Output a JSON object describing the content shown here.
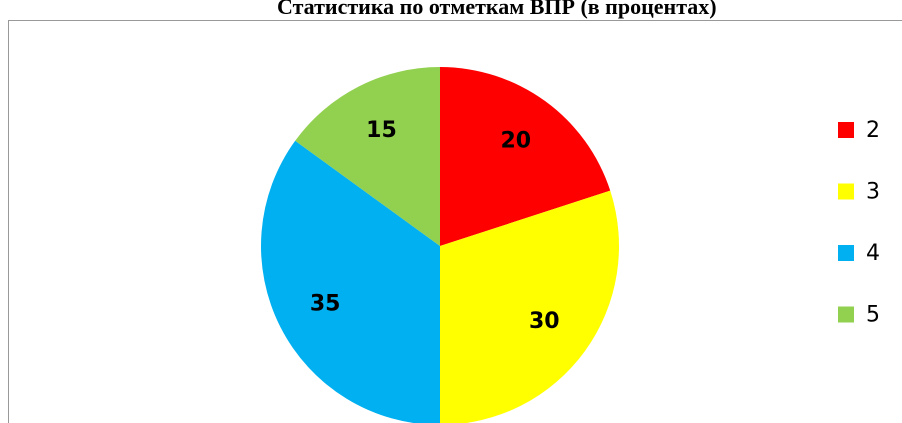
{
  "chart_data": {
    "type": "pie",
    "title": "Статистика по отметкам ВПР (в процентах)",
    "categories": [
      "2",
      "3",
      "4",
      "5"
    ],
    "values": [
      20,
      30,
      35,
      15
    ],
    "colors": [
      "#ff0000",
      "#ffff00",
      "#00b0f0",
      "#92d050"
    ],
    "legend": "right"
  }
}
